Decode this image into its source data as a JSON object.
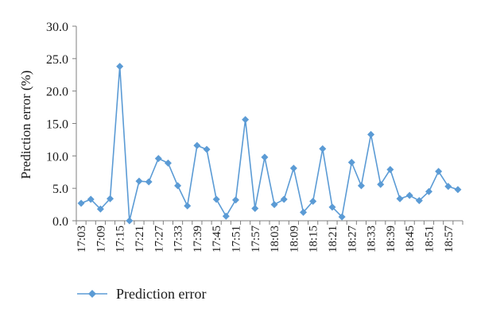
{
  "chart_data": {
    "type": "line",
    "ylabel": "Prediction error (%)",
    "xlabel": "",
    "ylim": [
      0,
      30
    ],
    "y_ticks": [
      "0.0",
      "5.0",
      "10.0",
      "15.0",
      "20.0",
      "25.0",
      "30.0"
    ],
    "grid": false,
    "legend_position": "bottom-left",
    "x_tick_labels": [
      "17:03",
      "17:09",
      "17:15",
      "17:21",
      "17:27",
      "17:33",
      "17:39",
      "17:45",
      "17:51",
      "17:57",
      "18:03",
      "18:09",
      "18:15",
      "18:21",
      "18:27",
      "18:33",
      "18:39",
      "18:45",
      "18:51",
      "18:57"
    ],
    "x": [
      "17:03",
      "17:06",
      "17:09",
      "17:12",
      "17:15",
      "17:18",
      "17:21",
      "17:24",
      "17:27",
      "17:30",
      "17:33",
      "17:36",
      "17:39",
      "17:42",
      "17:45",
      "17:48",
      "17:51",
      "17:54",
      "17:57",
      "18:00",
      "18:03",
      "18:06",
      "18:09",
      "18:12",
      "18:15",
      "18:18",
      "18:21",
      "18:24",
      "18:27",
      "18:30",
      "18:33",
      "18:36",
      "18:39",
      "18:42",
      "18:45",
      "18:48",
      "18:51",
      "18:54",
      "18:57",
      "19:00"
    ],
    "series": [
      {
        "name": "Prediction error",
        "color": "#5b9bd5",
        "marker": "diamond",
        "values": [
          2.7,
          3.3,
          1.8,
          3.4,
          23.8,
          0.0,
          6.1,
          6.0,
          9.6,
          8.9,
          5.4,
          2.3,
          11.6,
          11.0,
          3.3,
          0.7,
          3.2,
          15.6,
          1.9,
          9.8,
          2.5,
          3.3,
          8.1,
          1.3,
          3.0,
          11.1,
          2.1,
          0.6,
          9.0,
          5.4,
          13.3,
          5.6,
          7.9,
          3.4,
          3.9,
          3.1,
          4.5,
          7.6,
          5.3,
          4.8
        ]
      }
    ]
  },
  "colors": {
    "axis": "#7f7f7f",
    "series": "#5b9bd5"
  }
}
